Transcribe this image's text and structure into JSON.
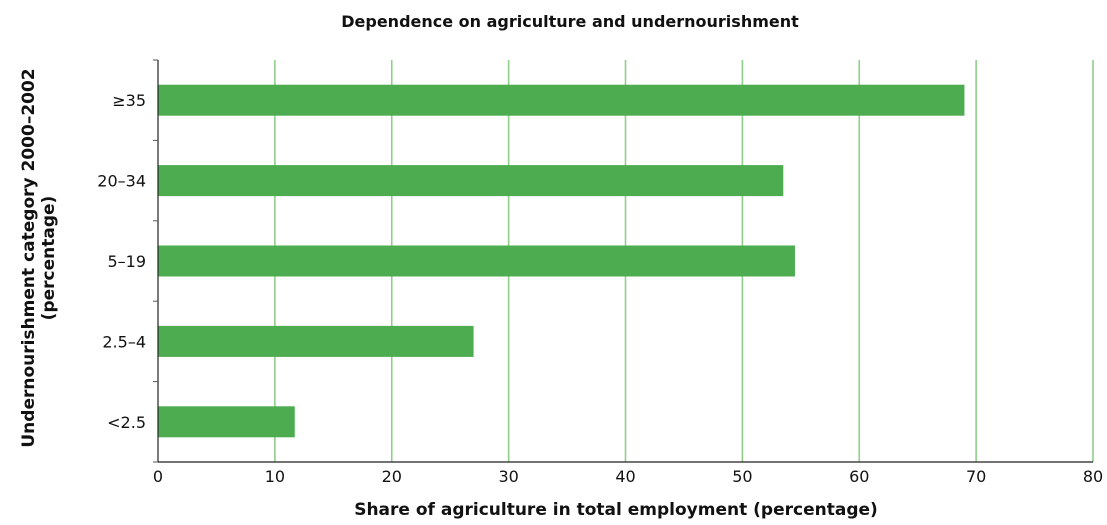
{
  "chart_data": {
    "type": "bar",
    "orientation": "horizontal",
    "title": "Dependence on agriculture and undernourishment",
    "xlabel": "Share of agriculture in total employment (percentage)",
    "ylabel": [
      "Undernourishment category 2000–2002",
      "(percentage)"
    ],
    "categories": [
      "≥35",
      "20–34",
      "5–19",
      "2.5–4",
      "<2.5"
    ],
    "values": [
      69,
      53.5,
      54.5,
      27,
      11.7
    ],
    "xlim": [
      0,
      80
    ],
    "xticks": [
      0,
      10,
      20,
      30,
      40,
      50,
      60,
      70,
      80
    ],
    "grid": "vertical",
    "bar_color": "#4cac4f",
    "grid_color": "#8fcf8a"
  }
}
